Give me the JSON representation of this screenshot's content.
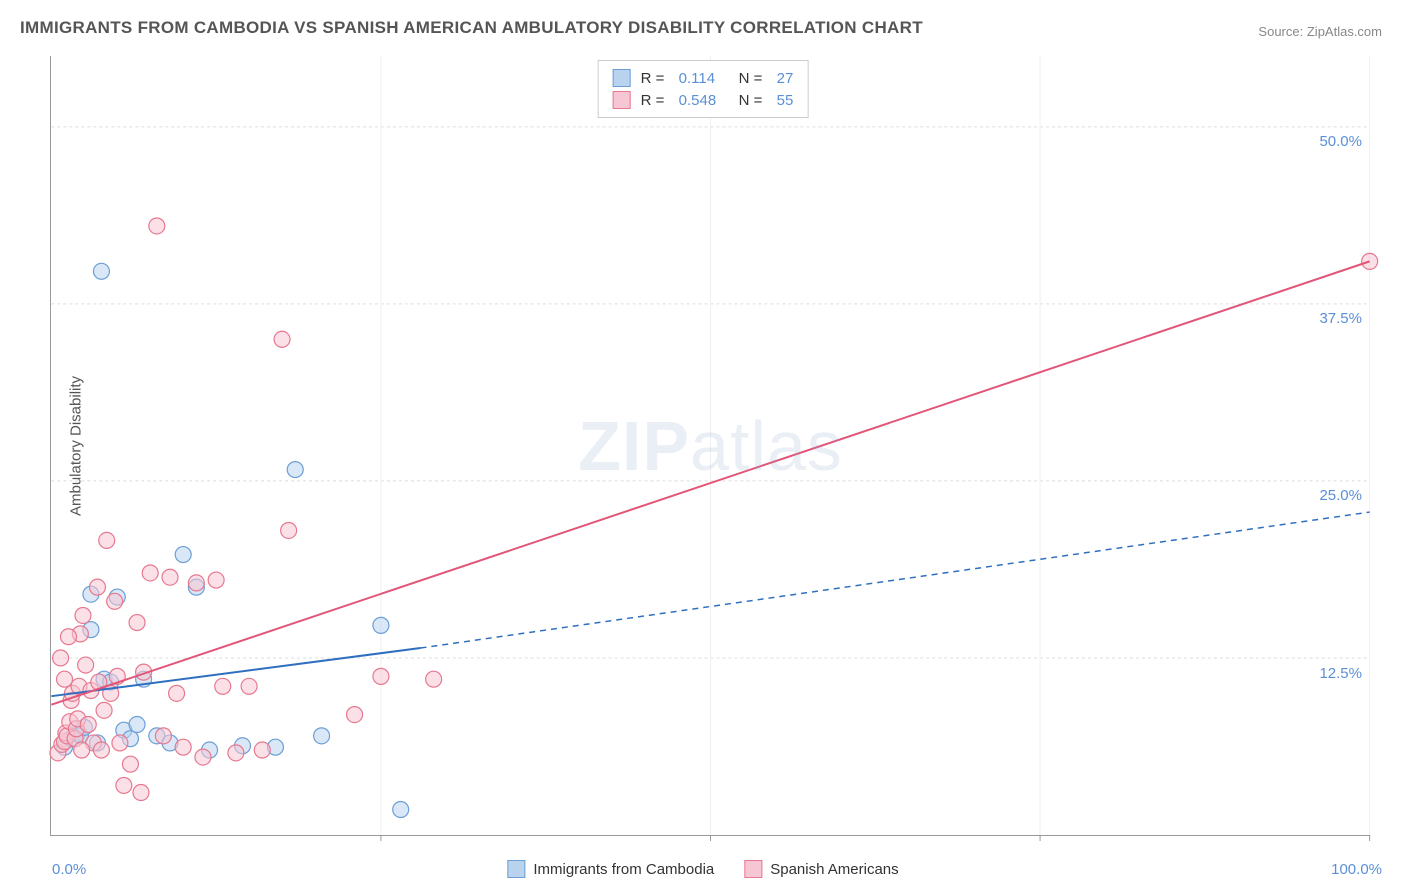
{
  "title": "IMMIGRANTS FROM CAMBODIA VS SPANISH AMERICAN AMBULATORY DISABILITY CORRELATION CHART",
  "source_label": "Source:",
  "source_name": "ZipAtlas.com",
  "y_axis_title": "Ambulatory Disability",
  "watermark_bold": "ZIP",
  "watermark_light": "atlas",
  "chart": {
    "type": "scatter",
    "xlim": [
      0,
      100
    ],
    "ylim": [
      0,
      55
    ],
    "x_tick_positions": [
      0,
      25,
      50,
      75,
      100
    ],
    "y_ticks": [
      {
        "value": 12.5,
        "label": "12.5%"
      },
      {
        "value": 25.0,
        "label": "25.0%"
      },
      {
        "value": 37.5,
        "label": "37.5%"
      },
      {
        "value": 50.0,
        "label": "50.0%"
      }
    ],
    "x_label_min": "0.0%",
    "x_label_max": "100.0%",
    "background_color": "#ffffff",
    "grid_color": "#dddddd",
    "axis_color": "#999999",
    "marker_radius": 8,
    "marker_stroke_width": 1.2,
    "line_width": 2,
    "dash_pattern": "6,5"
  },
  "series": [
    {
      "name": "Immigrants from Cambodia",
      "color_fill": "#b9d3ef",
      "color_stroke": "#6b9fd6",
      "line_color": "#2f6fc0",
      "r_value": "0.114",
      "n_value": "27",
      "trend_solid": {
        "x1": 0,
        "y1": 9.8,
        "x2": 28,
        "y2": 13.2
      },
      "trend_dashed": {
        "x1": 28,
        "y1": 13.2,
        "x2": 100,
        "y2": 22.8
      },
      "points": [
        [
          1.0,
          6.2
        ],
        [
          1.5,
          6.8
        ],
        [
          2.0,
          7.2
        ],
        [
          2.2,
          7.0
        ],
        [
          2.5,
          7.6
        ],
        [
          3.0,
          14.5
        ],
        [
          3.0,
          17.0
        ],
        [
          3.5,
          6.5
        ],
        [
          3.8,
          39.8
        ],
        [
          4.0,
          11.0
        ],
        [
          4.5,
          10.8
        ],
        [
          5.0,
          16.8
        ],
        [
          5.5,
          7.4
        ],
        [
          6.0,
          6.8
        ],
        [
          7.0,
          11.0
        ],
        [
          8.0,
          7.0
        ],
        [
          9.0,
          6.5
        ],
        [
          10.0,
          19.8
        ],
        [
          11.0,
          17.5
        ],
        [
          14.5,
          6.3
        ],
        [
          17.0,
          6.2
        ],
        [
          18.5,
          25.8
        ],
        [
          20.5,
          7.0
        ],
        [
          25.0,
          14.8
        ],
        [
          26.5,
          1.8
        ],
        [
          6.5,
          7.8
        ],
        [
          12.0,
          6.0
        ]
      ]
    },
    {
      "name": "Spanish Americans",
      "color_fill": "#f7c6d4",
      "color_stroke": "#e6788f",
      "line_color": "#e25578",
      "r_value": "0.548",
      "n_value": "55",
      "trend_solid": {
        "x1": 0,
        "y1": 9.2,
        "x2": 100,
        "y2": 40.5
      },
      "trend_dashed": null,
      "points": [
        [
          0.5,
          5.8
        ],
        [
          0.8,
          6.4
        ],
        [
          1.0,
          6.6
        ],
        [
          1.1,
          7.2
        ],
        [
          1.2,
          7.0
        ],
        [
          1.4,
          8.0
        ],
        [
          1.5,
          9.5
        ],
        [
          1.6,
          10.0
        ],
        [
          1.8,
          6.8
        ],
        [
          1.9,
          7.5
        ],
        [
          2.0,
          8.2
        ],
        [
          2.1,
          10.5
        ],
        [
          2.2,
          14.2
        ],
        [
          2.4,
          15.5
        ],
        [
          2.6,
          12.0
        ],
        [
          2.8,
          7.8
        ],
        [
          3.0,
          10.2
        ],
        [
          3.2,
          6.5
        ],
        [
          3.5,
          17.5
        ],
        [
          3.6,
          10.8
        ],
        [
          3.8,
          6.0
        ],
        [
          4.0,
          8.8
        ],
        [
          4.2,
          20.8
        ],
        [
          4.5,
          10.0
        ],
        [
          4.8,
          16.5
        ],
        [
          5.0,
          11.2
        ],
        [
          5.5,
          3.5
        ],
        [
          6.0,
          5.0
        ],
        [
          6.5,
          15.0
        ],
        [
          7.0,
          11.5
        ],
        [
          7.5,
          18.5
        ],
        [
          8.0,
          43.0
        ],
        [
          8.5,
          7.0
        ],
        [
          9.0,
          18.2
        ],
        [
          9.5,
          10.0
        ],
        [
          10.0,
          6.2
        ],
        [
          11.0,
          17.8
        ],
        [
          11.5,
          5.5
        ],
        [
          12.5,
          18.0
        ],
        [
          14.0,
          5.8
        ],
        [
          15.0,
          10.5
        ],
        [
          16.0,
          6.0
        ],
        [
          17.5,
          35.0
        ],
        [
          18.0,
          21.5
        ],
        [
          23.0,
          8.5
        ],
        [
          25.0,
          11.2
        ],
        [
          29.0,
          11.0
        ],
        [
          1.3,
          14.0
        ],
        [
          0.7,
          12.5
        ],
        [
          1.0,
          11.0
        ],
        [
          2.3,
          6.0
        ],
        [
          5.2,
          6.5
        ],
        [
          6.8,
          3.0
        ],
        [
          13.0,
          10.5
        ],
        [
          100.0,
          40.5
        ]
      ]
    }
  ],
  "legend_top_header": {
    "r": "R =",
    "n": "N ="
  },
  "legend_bottom_items": [
    {
      "label": "Immigrants from Cambodia",
      "fill": "#b9d3ef",
      "stroke": "#6b9fd6"
    },
    {
      "label": "Spanish Americans",
      "fill": "#f7c6d4",
      "stroke": "#e6788f"
    }
  ]
}
